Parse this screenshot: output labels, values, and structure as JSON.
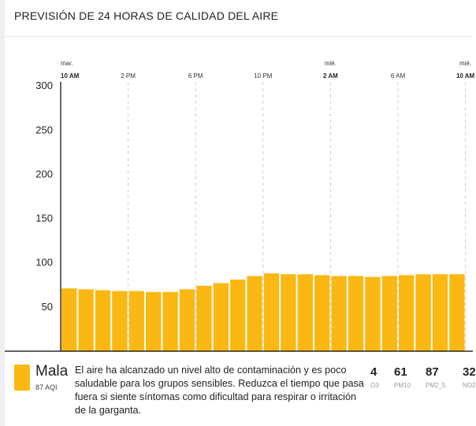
{
  "title": "PREVISIÓN DE 24 HORAS DE CALIDAD DEL AIRE",
  "chart_data": {
    "type": "bar",
    "y_ticks": [
      50,
      100,
      150,
      200,
      250,
      300
    ],
    "ylim": [
      0,
      300
    ],
    "time_labels": [
      {
        "day": "mar.",
        "time": "10 AM",
        "bold": true,
        "index": 0
      },
      {
        "day": "",
        "time": "2 PM",
        "bold": false,
        "index": 4
      },
      {
        "day": "",
        "time": "6 PM",
        "bold": false,
        "index": 8
      },
      {
        "day": "",
        "time": "10 PM",
        "bold": false,
        "index": 12
      },
      {
        "day": "mié.",
        "time": "2 AM",
        "bold": true,
        "index": 16
      },
      {
        "day": "",
        "time": "6 AM",
        "bold": false,
        "index": 20
      },
      {
        "day": "mié.",
        "time": "10 AM",
        "bold": true,
        "index": 24
      }
    ],
    "values": [
      71,
      70,
      69,
      68,
      68,
      67,
      67,
      70,
      74,
      77,
      81,
      85,
      88,
      87,
      87,
      86,
      85,
      85,
      84,
      85,
      86,
      87,
      87,
      87
    ],
    "bar_color": "#FBB812"
  },
  "current": {
    "level": "Mala",
    "aqi_text": "87 AQI",
    "description": "El aire ha alcanzado un nivel alto de contaminación y es poco saludable para los grupos sensibles. Reduzca el tiempo que pasa fuera si siente síntomas como dificultad para respirar o irritación de la garganta.",
    "color": "#FBB812"
  },
  "pollutants": [
    {
      "value": "4",
      "name": "O3"
    },
    {
      "value": "61",
      "name": "PM10"
    },
    {
      "value": "87",
      "name": "PM2_5"
    },
    {
      "value": "32",
      "name": "NO2"
    }
  ]
}
